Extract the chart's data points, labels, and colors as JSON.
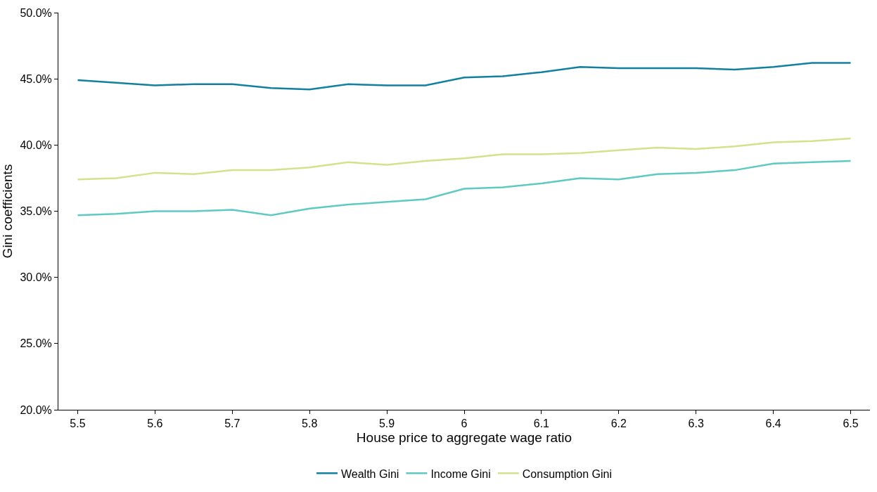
{
  "chart_data": {
    "type": "line",
    "xlabel": "House price to aggregate wage ratio",
    "ylabel": "Gini coefficients",
    "x": [
      5.5,
      5.55,
      5.6,
      5.65,
      5.7,
      5.75,
      5.8,
      5.85,
      5.9,
      5.95,
      6,
      6.05,
      6.1,
      6.15,
      6.2,
      6.25,
      6.3,
      6.35,
      6.4,
      6.45,
      6.5
    ],
    "series": [
      {
        "name": "Wealth Gini",
        "color": "#12809e",
        "values": [
          44.9,
          44.7,
          44.5,
          44.6,
          44.6,
          44.3,
          44.2,
          44.6,
          44.5,
          44.5,
          45.1,
          45.2,
          45.5,
          45.9,
          45.8,
          45.8,
          45.8,
          45.7,
          45.9,
          46.2,
          46.2
        ]
      },
      {
        "name": "Income Gini",
        "color": "#5ecac1",
        "values": [
          34.7,
          34.8,
          35.0,
          35.0,
          35.1,
          34.7,
          35.2,
          35.5,
          35.7,
          35.9,
          36.7,
          36.8,
          37.1,
          37.5,
          37.4,
          37.8,
          37.9,
          38.1,
          38.6,
          38.7,
          38.8
        ]
      },
      {
        "name": "Consumption Gini",
        "color": "#d3e28c",
        "values": [
          37.4,
          37.5,
          37.9,
          37.8,
          38.1,
          38.1,
          38.3,
          38.7,
          38.5,
          38.8,
          39.0,
          39.3,
          39.3,
          39.4,
          39.6,
          39.8,
          39.7,
          39.9,
          40.2,
          40.3,
          40.5
        ]
      }
    ],
    "xlim": [
      5.475,
      6.525
    ],
    "xticks": [
      5.5,
      5.6,
      5.7,
      5.8,
      5.9,
      6,
      6.1,
      6.2,
      6.3,
      6.4,
      6.5
    ],
    "ylim": [
      20,
      50
    ],
    "yticks": [
      {
        "value": 20,
        "label": "20.0%"
      },
      {
        "value": 25,
        "label": "25.0%"
      },
      {
        "value": 30,
        "label": "30.0%"
      },
      {
        "value": 35,
        "label": "35.0%"
      },
      {
        "value": 40,
        "label": "40.0%"
      },
      {
        "value": 45,
        "label": "45.0%"
      },
      {
        "value": 50,
        "label": "50.0%"
      }
    ],
    "grid": false,
    "legend": "bottom",
    "marker": "none",
    "line_style": "solid"
  }
}
